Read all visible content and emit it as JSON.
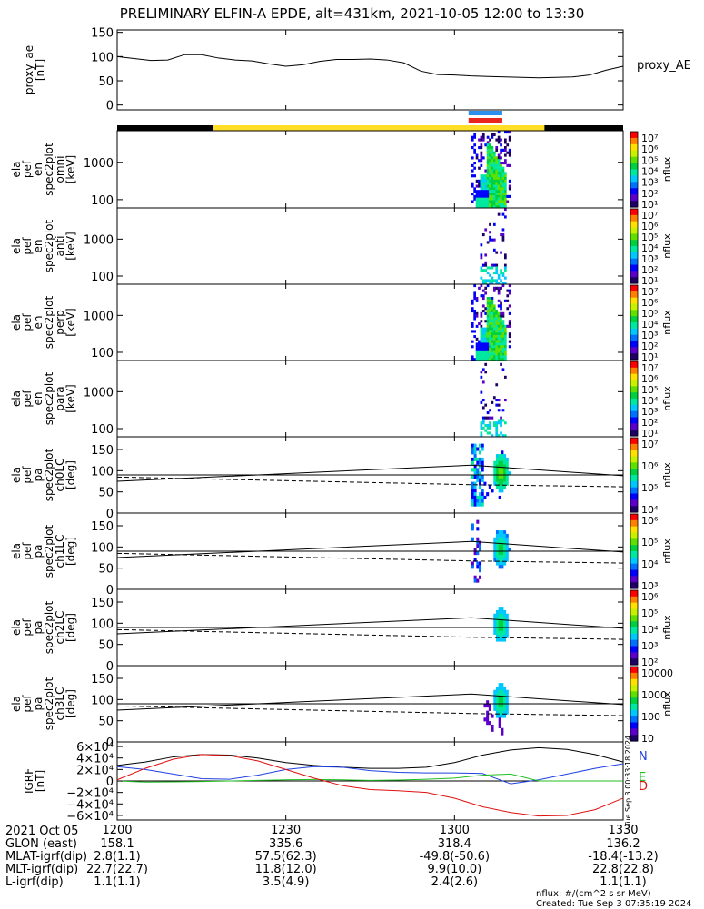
{
  "title": "PRELIMINARY ELFIN-A EPDE, alt=431km, 2021-10-05 12:00 to 13:30",
  "colors": {
    "ae": "#000000",
    "day": "#ffde28",
    "night": "#000000",
    "sci_top": "#2c8ff0",
    "sci_bottom": "#e8261e",
    "grf_N": "#000000",
    "grf_E": "#20c020",
    "grf_D": "#e01010",
    "grf_blue": "#2040e0"
  },
  "chart_data": [
    {
      "type": "line",
      "name": "proxy_ae",
      "ylabel": [
        "proxy_ae",
        "[nT]"
      ],
      "ylim": [
        -10,
        155
      ],
      "yticks": [
        0,
        50,
        100,
        150
      ],
      "legend": "proxy_AE",
      "x_minutes": [
        0,
        3,
        6,
        9,
        12,
        15,
        18,
        21,
        24,
        27,
        30,
        33,
        36,
        39,
        42,
        45,
        48,
        51,
        54,
        57,
        60,
        63,
        66,
        69,
        72,
        75,
        78,
        81,
        84,
        87,
        90
      ],
      "values": [
        100,
        96,
        92,
        93,
        104,
        104,
        97,
        93,
        91,
        85,
        80,
        83,
        90,
        94,
        94,
        95,
        93,
        87,
        70,
        63,
        62,
        60,
        59,
        58,
        57,
        56,
        57,
        58,
        62,
        72,
        80
      ]
    },
    {
      "type": "heatmap",
      "name": "spec2plot omni",
      "ylabel": [
        "ela",
        "pef",
        "en",
        "spec2plot",
        "omni",
        "[keV]"
      ],
      "ylog": true,
      "ylim": [
        60,
        7000
      ],
      "yticks": [
        100,
        1000
      ],
      "x_range_minutes": [
        63,
        70
      ],
      "colorbar": {
        "label": "nflux",
        "ticks": [
          "10⁷",
          "10⁶",
          "10⁵",
          "10⁴",
          "10³",
          "10²",
          "10¹"
        ],
        "log": true
      }
    },
    {
      "type": "heatmap",
      "name": "spec2plot anti",
      "ylabel": [
        "ela",
        "pef",
        "en",
        "spec2plot",
        "anti",
        "[keV]"
      ],
      "ylog": true,
      "ylim": [
        60,
        7000
      ],
      "yticks": [
        100,
        1000
      ],
      "x_range_minutes": [
        63,
        70
      ],
      "colorbar": {
        "label": "nflux",
        "ticks": [
          "10⁷",
          "10⁶",
          "10⁵",
          "10⁴",
          "10³",
          "10²",
          "10¹"
        ],
        "log": true
      }
    },
    {
      "type": "heatmap",
      "name": "spec2plot perp",
      "ylabel": [
        "ela",
        "pef",
        "en",
        "spec2plot",
        "perp",
        "[keV]"
      ],
      "ylog": true,
      "ylim": [
        60,
        7000
      ],
      "yticks": [
        100,
        1000
      ],
      "x_range_minutes": [
        63,
        70
      ],
      "colorbar": {
        "label": "nflux",
        "ticks": [
          "10⁷",
          "10⁶",
          "10⁵",
          "10⁴",
          "10³",
          "10²",
          "10¹"
        ],
        "log": true
      }
    },
    {
      "type": "heatmap",
      "name": "spec2plot para",
      "ylabel": [
        "ela",
        "pef",
        "en",
        "spec2plot",
        "para",
        "[keV]"
      ],
      "ylog": true,
      "ylim": [
        60,
        7000
      ],
      "yticks": [
        100,
        1000
      ],
      "x_range_minutes": [
        63,
        70
      ],
      "colorbar": {
        "label": "nflux",
        "ticks": [
          "10⁷",
          "10⁶",
          "10⁵",
          "10⁴",
          "10³",
          "10²",
          "10¹"
        ],
        "log": true
      }
    },
    {
      "type": "heatmap",
      "name": "spec2plot ch0LC",
      "ylabel": [
        "ela",
        "pef",
        "pa",
        "spec2plot",
        "ch0LC",
        "[deg]"
      ],
      "ylim": [
        0,
        180
      ],
      "yticks": [
        0,
        50,
        100,
        150
      ],
      "x_range_minutes": [
        63,
        70
      ],
      "lines": {
        "solid": [
          [
            0,
            75
          ],
          [
            63,
            113
          ],
          [
            90,
            88
          ]
        ],
        "dashed": [
          [
            0,
            85
          ],
          [
            63,
            67
          ],
          [
            90,
            62
          ]
        ],
        "hline": 90
      },
      "colorbar": {
        "label": "nflux",
        "ticks": [
          "10⁷",
          "10⁶",
          "10⁵",
          "10⁴"
        ],
        "log": true
      }
    },
    {
      "type": "heatmap",
      "name": "spec2plot ch1LC",
      "ylabel": [
        "ela",
        "pef",
        "pa",
        "spec2plot",
        "ch1LC",
        "[deg]"
      ],
      "ylim": [
        0,
        180
      ],
      "yticks": [
        0,
        50,
        100,
        150
      ],
      "x_range_minutes": [
        63,
        70
      ],
      "lines": {
        "solid": [
          [
            0,
            75
          ],
          [
            63,
            113
          ],
          [
            90,
            88
          ]
        ],
        "dashed": [
          [
            0,
            85
          ],
          [
            63,
            67
          ],
          [
            90,
            62
          ]
        ],
        "hline": 90
      },
      "colorbar": {
        "label": "nflux",
        "ticks": [
          "10⁶",
          "10⁵",
          "10⁴",
          "10³"
        ],
        "log": true
      }
    },
    {
      "type": "heatmap",
      "name": "spec2plot ch2LC",
      "ylabel": [
        "ela",
        "pef",
        "pa",
        "spec2plot",
        "ch2LC",
        "[deg]"
      ],
      "ylim": [
        0,
        180
      ],
      "yticks": [
        0,
        50,
        100,
        150
      ],
      "x_range_minutes": [
        63,
        70
      ],
      "lines": {
        "solid": [
          [
            0,
            75
          ],
          [
            63,
            113
          ],
          [
            90,
            88
          ]
        ],
        "dashed": [
          [
            0,
            85
          ],
          [
            63,
            67
          ],
          [
            90,
            62
          ]
        ],
        "hline": 90
      },
      "colorbar": {
        "label": "nflux",
        "ticks": [
          "10⁶",
          "10⁵",
          "10⁴",
          "10³",
          "10²"
        ],
        "log": true
      }
    },
    {
      "type": "heatmap",
      "name": "spec2plot ch3LC",
      "ylabel": [
        "ela",
        "pef",
        "pa",
        "spec2plot",
        "ch3LC",
        "[deg]"
      ],
      "ylim": [
        0,
        180
      ],
      "yticks": [
        0,
        50,
        100,
        150
      ],
      "x_range_minutes": [
        63,
        70
      ],
      "lines": {
        "solid": [
          [
            0,
            75
          ],
          [
            63,
            113
          ],
          [
            90,
            88
          ]
        ],
        "dashed": [
          [
            0,
            85
          ],
          [
            63,
            67
          ],
          [
            90,
            62
          ]
        ],
        "hline": 90
      },
      "colorbar": {
        "label": "nflux",
        "ticks": [
          "10000",
          "1000",
          "100",
          "10"
        ],
        "log": true
      }
    },
    {
      "type": "line",
      "name": "IGRF",
      "ylabel": [
        "IGRF",
        "[nT]"
      ],
      "ylim": [
        -68000,
        68000
      ],
      "yticks": [
        "6×10⁴",
        "4×10⁴",
        "2×10⁴",
        "0",
        "−2×10⁴",
        "−4×10⁴",
        "−6×10⁴"
      ],
      "ytick_values": [
        60000,
        40000,
        20000,
        0,
        -20000,
        -40000,
        -60000
      ],
      "legend": [
        "N",
        "E",
        "D"
      ],
      "side_label": "Tue Sep  3 00:33:18 2024",
      "x_minutes": [
        0,
        5,
        10,
        15,
        20,
        25,
        30,
        35,
        40,
        45,
        50,
        55,
        60,
        65,
        70,
        75,
        80,
        85,
        90
      ],
      "series": [
        {
          "name": "N",
          "values": [
            27000,
            33000,
            42000,
            46000,
            45000,
            40000,
            32000,
            27000,
            24000,
            22000,
            22000,
            24000,
            32000,
            45000,
            54000,
            58000,
            55000,
            46000,
            33000
          ]
        },
        {
          "name": "blue",
          "values": [
            25000,
            20000,
            12000,
            4000,
            3000,
            10000,
            20000,
            25000,
            24000,
            18000,
            15000,
            14000,
            14000,
            13000,
            -5000,
            2000,
            12000,
            22000,
            30000
          ]
        },
        {
          "name": "E",
          "values": [
            0,
            -2000,
            -1500,
            -1000,
            0,
            1000,
            2000,
            2500,
            2000,
            1000,
            1500,
            3000,
            5000,
            10000,
            12000,
            0,
            0,
            0,
            0
          ]
        },
        {
          "name": "D",
          "values": [
            2000,
            22000,
            38000,
            46000,
            44000,
            35000,
            20000,
            5000,
            -8000,
            -15000,
            -17000,
            -20000,
            -30000,
            -45000,
            -55000,
            -61000,
            -60000,
            -50000,
            -30000
          ]
        }
      ]
    }
  ],
  "x_axis": {
    "ticks": [
      "1200",
      "1230",
      "1300",
      "1330"
    ],
    "tick_minutes": [
      0,
      30,
      60,
      90
    ]
  },
  "bars": {
    "day_segments": [
      [
        0,
        17,
        "night"
      ],
      [
        17,
        76,
        "day"
      ],
      [
        76,
        90,
        "night"
      ]
    ],
    "science_zone": [
      62.5,
      68.5
    ]
  },
  "footer": {
    "rows": [
      {
        "label": "2021 Oct 05",
        "values": [
          "1200",
          "1230",
          "1300",
          "1330"
        ]
      },
      {
        "label": "GLON (east)",
        "values": [
          "158.1",
          "335.6",
          "318.4",
          "136.2"
        ]
      },
      {
        "label": "MLAT-igrf(dip)",
        "values": [
          "2.8(1.1)",
          "57.5(62.3)",
          "-49.8(-50.6)",
          "-18.4(-13.2)"
        ]
      },
      {
        "label": "MLT-igrf(dip)",
        "values": [
          "22.7(22.7)",
          "11.8(12.0)",
          "9.9(10.0)",
          "22.8(22.8)"
        ]
      },
      {
        "label": "L-igrf(dip)",
        "values": [
          "1.1(1.1)",
          "3.5(4.9)",
          "2.4(2.6)",
          "1.1(1.1)"
        ]
      }
    ],
    "units": "nflux: #/(cm^2 s sr MeV)",
    "created": "Created: Tue Sep  3 07:35:19 2024"
  }
}
